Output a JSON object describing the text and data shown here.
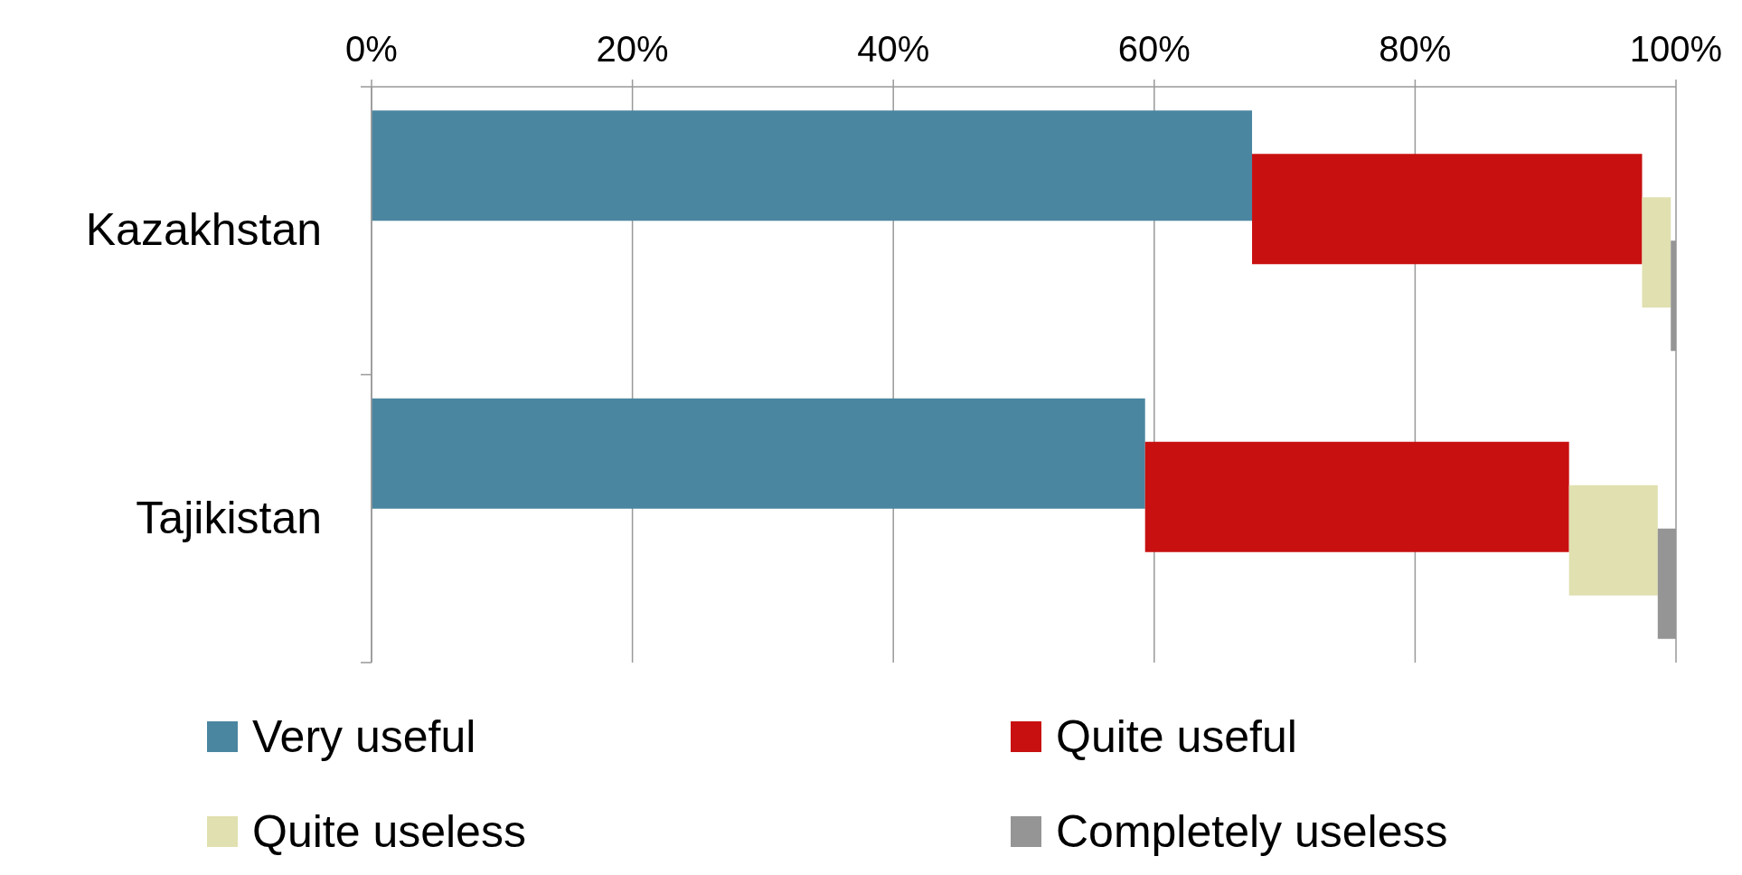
{
  "chart_data": {
    "type": "bar",
    "orientation": "horizontal",
    "stacked": true,
    "categories": [
      "Kazakhstan",
      "Tajikistan"
    ],
    "series": [
      {
        "name": "Very useful",
        "color": "#4a86a0",
        "values": [
          67.5,
          59.3
        ]
      },
      {
        "name": "Quite useful",
        "color": "#c81010",
        "values": [
          29.9,
          32.5
        ]
      },
      {
        "name": "Quite useless",
        "color": "#e0e0b0",
        "values": [
          2.2,
          6.8
        ]
      },
      {
        "name": "Completely useless",
        "color": "#959595",
        "values": [
          0.4,
          1.4
        ]
      }
    ],
    "xlim": [
      0,
      100
    ],
    "xticks": [
      {
        "value": 0,
        "label": "0%"
      },
      {
        "value": 20,
        "label": "20%"
      },
      {
        "value": 40,
        "label": "40%"
      },
      {
        "value": 60,
        "label": "60%"
      },
      {
        "value": 80,
        "label": "80%"
      },
      {
        "value": 100,
        "label": "100%"
      }
    ],
    "grid": "x",
    "legend": "bottom"
  }
}
